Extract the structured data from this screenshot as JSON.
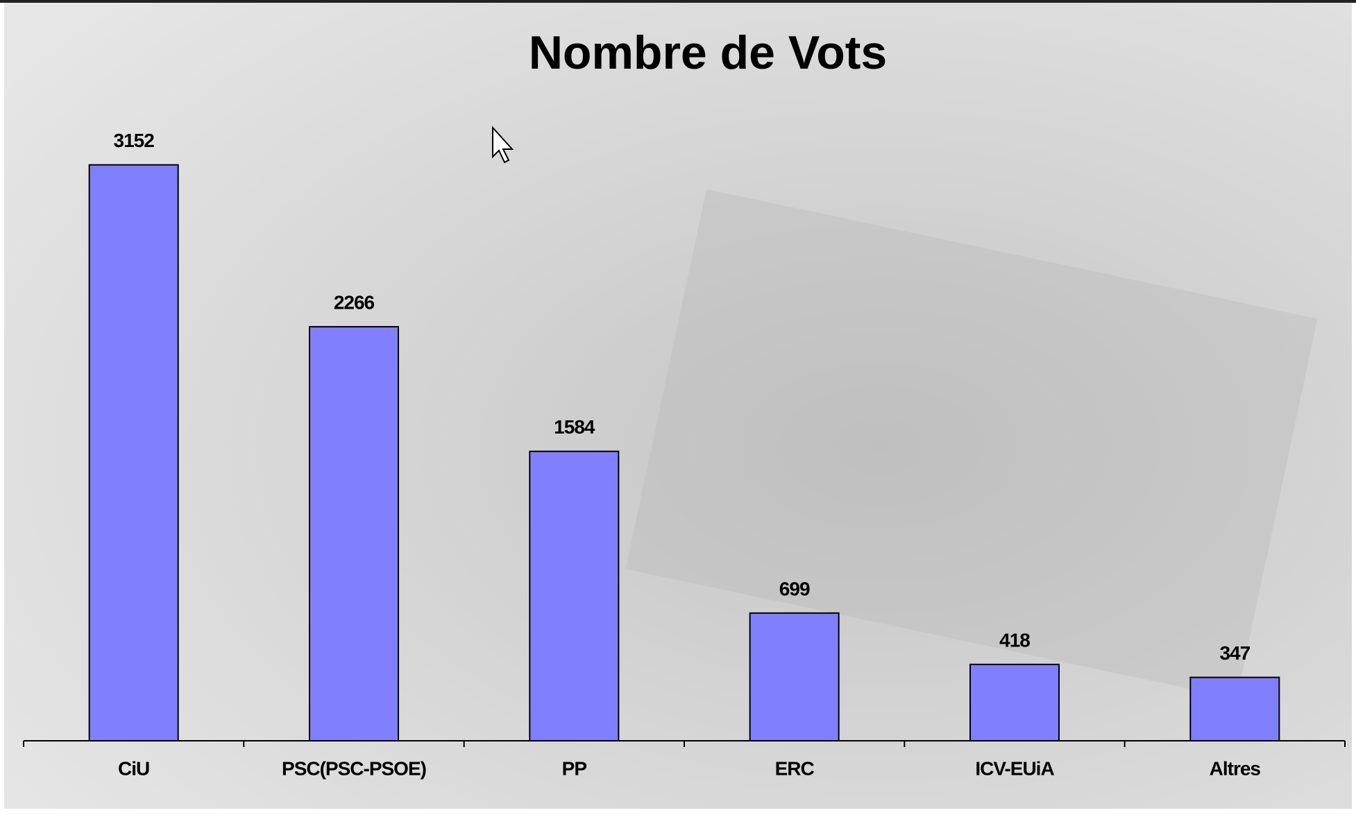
{
  "chart_data": {
    "type": "bar",
    "title": "Nombre de Vots",
    "categories": [
      "CiU",
      "PSC(PSC-PSOE)",
      "PP",
      "ERC",
      "ICV-EUiA",
      "Altres"
    ],
    "values": [
      3152,
      2266,
      1584,
      699,
      418,
      347
    ],
    "color": "#8080ff",
    "ylim": [
      0,
      3500
    ]
  }
}
